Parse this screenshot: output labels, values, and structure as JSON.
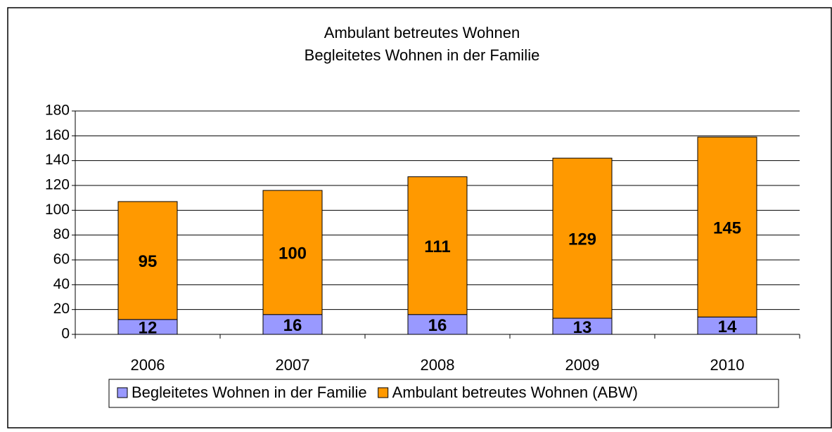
{
  "chart_data": {
    "type": "stacked_bar",
    "title": "Ambulant betreutes Wohnen",
    "subtitle": "Begleitetes Wohnen in der Familie",
    "categories": [
      "2006",
      "2007",
      "2008",
      "2009",
      "2010"
    ],
    "series": [
      {
        "name": "Begleitetes Wohnen in der Familie",
        "color": "#9999ff",
        "values": [
          12,
          16,
          16,
          13,
          14
        ]
      },
      {
        "name": "Ambulant betreutes Wohnen (ABW)",
        "color": "#ff9900",
        "values": [
          95,
          100,
          111,
          129,
          145
        ]
      }
    ],
    "ylim": [
      0,
      180
    ],
    "yticks": [
      0,
      20,
      40,
      60,
      80,
      100,
      120,
      140,
      160,
      180
    ],
    "grid": true,
    "legend": "bottom"
  }
}
